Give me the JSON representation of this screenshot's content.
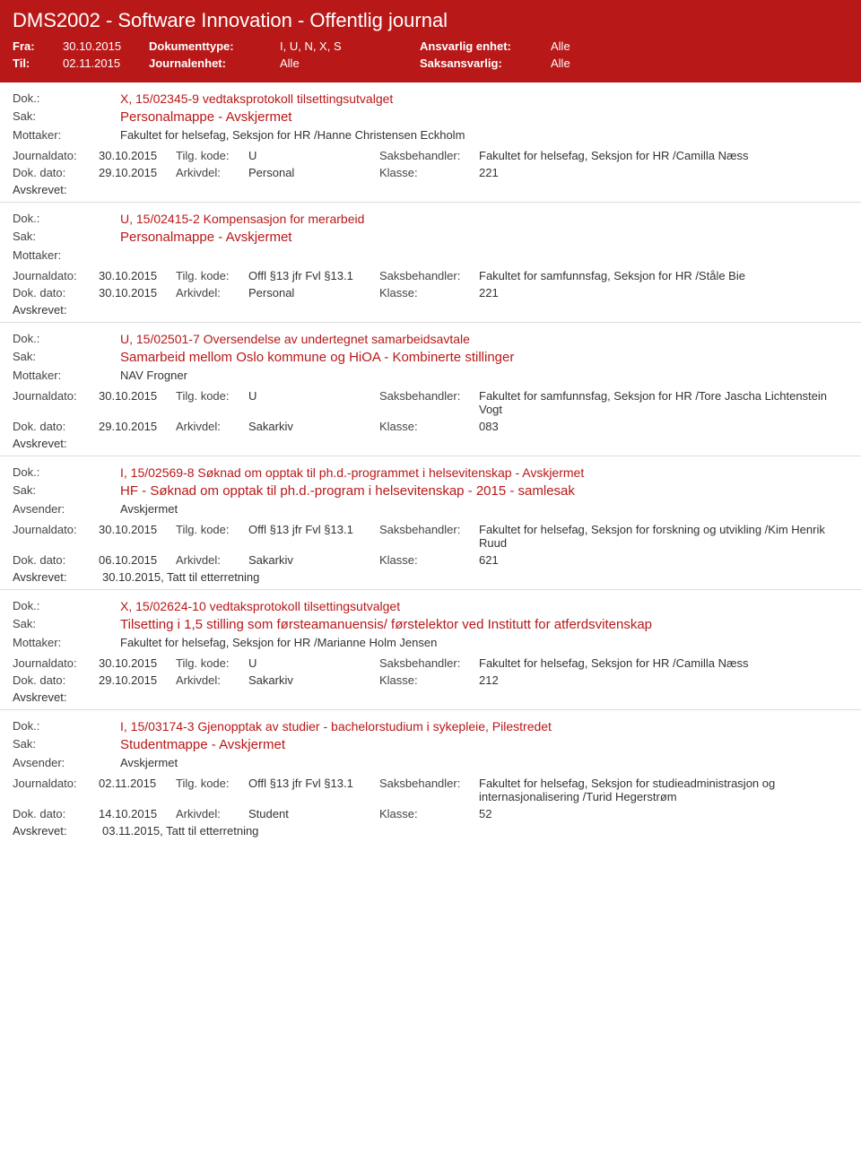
{
  "header": {
    "title": "DMS2002 - Software Innovation - Offentlig journal",
    "fra_label": "Fra:",
    "fra": "30.10.2015",
    "til_label": "Til:",
    "til": "02.11.2015",
    "doktype_label": "Dokumenttype:",
    "doktype": "I, U, N, X, S",
    "journalenhet_label": "Journalenhet:",
    "journalenhet": "Alle",
    "ansvarlig_label": "Ansvarlig enhet:",
    "ansvarlig": "Alle",
    "saksansvarlig_label": "Saksansvarlig:",
    "saksansvarlig": "Alle"
  },
  "labels": {
    "dok": "Dok.:",
    "sak": "Sak:",
    "mottaker": "Mottaker:",
    "avsender": "Avsender:",
    "journaldato": "Journaldato:",
    "tilg": "Tilg. kode:",
    "saksbeh": "Saksbehandler:",
    "dokdato": "Dok. dato:",
    "arkivdel": "Arkivdel:",
    "klasse": "Klasse:",
    "avskrevet": "Avskrevet:"
  },
  "entries": [
    {
      "dok": "X, 15/02345-9 vedtaksprotokoll tilsettingsutvalget",
      "sak": "Personalmappe - Avskjermet",
      "party_label": "Mottaker:",
      "party": "Fakultet for helsefag, Seksjon for HR /Hanne Christensen Eckholm",
      "journaldato": "30.10.2015",
      "tilg": "U",
      "saksbeh": "Fakultet for helsefag, Seksjon for HR /Camilla Næss",
      "dokdato": "29.10.2015",
      "arkivdel": "Personal",
      "klasse": "221",
      "avskrevet": ""
    },
    {
      "dok": "U, 15/02415-2 Kompensasjon for merarbeid",
      "sak": "Personalmappe - Avskjermet",
      "party_label": "Mottaker:",
      "party": "",
      "journaldato": "30.10.2015",
      "tilg": "Offl §13 jfr Fvl §13.1",
      "saksbeh": "Fakultet for samfunnsfag, Seksjon for HR /Ståle Bie",
      "dokdato": "30.10.2015",
      "arkivdel": "Personal",
      "klasse": "221",
      "avskrevet": ""
    },
    {
      "dok": "U, 15/02501-7 Oversendelse av undertegnet samarbeidsavtale",
      "sak": "Samarbeid mellom Oslo kommune  og HiOA - Kombinerte stillinger",
      "party_label": "Mottaker:",
      "party": "NAV Frogner",
      "journaldato": "30.10.2015",
      "tilg": "U",
      "saksbeh": "Fakultet for samfunnsfag, Seksjon for HR /Tore Jascha Lichtenstein Vogt",
      "dokdato": "29.10.2015",
      "arkivdel": "Sakarkiv",
      "klasse": "083",
      "avskrevet": ""
    },
    {
      "dok": "I, 15/02569-8 Søknad om opptak til ph.d.-programmet i helsevitenskap - Avskjermet",
      "sak": "HF - Søknad om opptak til ph.d.-program i helsevitenskap - 2015 - samlesak",
      "party_label": "Avsender:",
      "party": "Avskjermet",
      "journaldato": "30.10.2015",
      "tilg": "Offl §13 jfr Fvl §13.1",
      "saksbeh": "Fakultet for helsefag, Seksjon for forskning og utvikling /Kim Henrik Ruud",
      "dokdato": "06.10.2015",
      "arkivdel": "Sakarkiv",
      "klasse": "621",
      "avskrevet": "30.10.2015, Tatt til etterretning"
    },
    {
      "dok": "X, 15/02624-10 vedtaksprotokoll tilsettingsutvalget",
      "sak": "Tilsetting i 1,5 stilling som førsteamanuensis/ førstelektor ved Institutt for atferdsvitenskap",
      "party_label": "Mottaker:",
      "party": "Fakultet for helsefag, Seksjon for HR /Marianne Holm Jensen",
      "journaldato": "30.10.2015",
      "tilg": "U",
      "saksbeh": "Fakultet for helsefag, Seksjon for HR /Camilla Næss",
      "dokdato": "29.10.2015",
      "arkivdel": "Sakarkiv",
      "klasse": "212",
      "avskrevet": ""
    },
    {
      "dok": "I, 15/03174-3 Gjenopptak av studier -  bachelorstudium i sykepleie, Pilestredet",
      "sak": "Studentmappe - Avskjermet",
      "party_label": "Avsender:",
      "party": "Avskjermet",
      "journaldato": "02.11.2015",
      "tilg": "Offl §13 jfr Fvl §13.1",
      "saksbeh": "Fakultet for helsefag, Seksjon for studieadministrasjon og internasjonalisering /Turid Hegerstrøm",
      "dokdato": "14.10.2015",
      "arkivdel": "Student",
      "klasse": "52",
      "avskrevet": "03.11.2015, Tatt til etterretning"
    }
  ]
}
